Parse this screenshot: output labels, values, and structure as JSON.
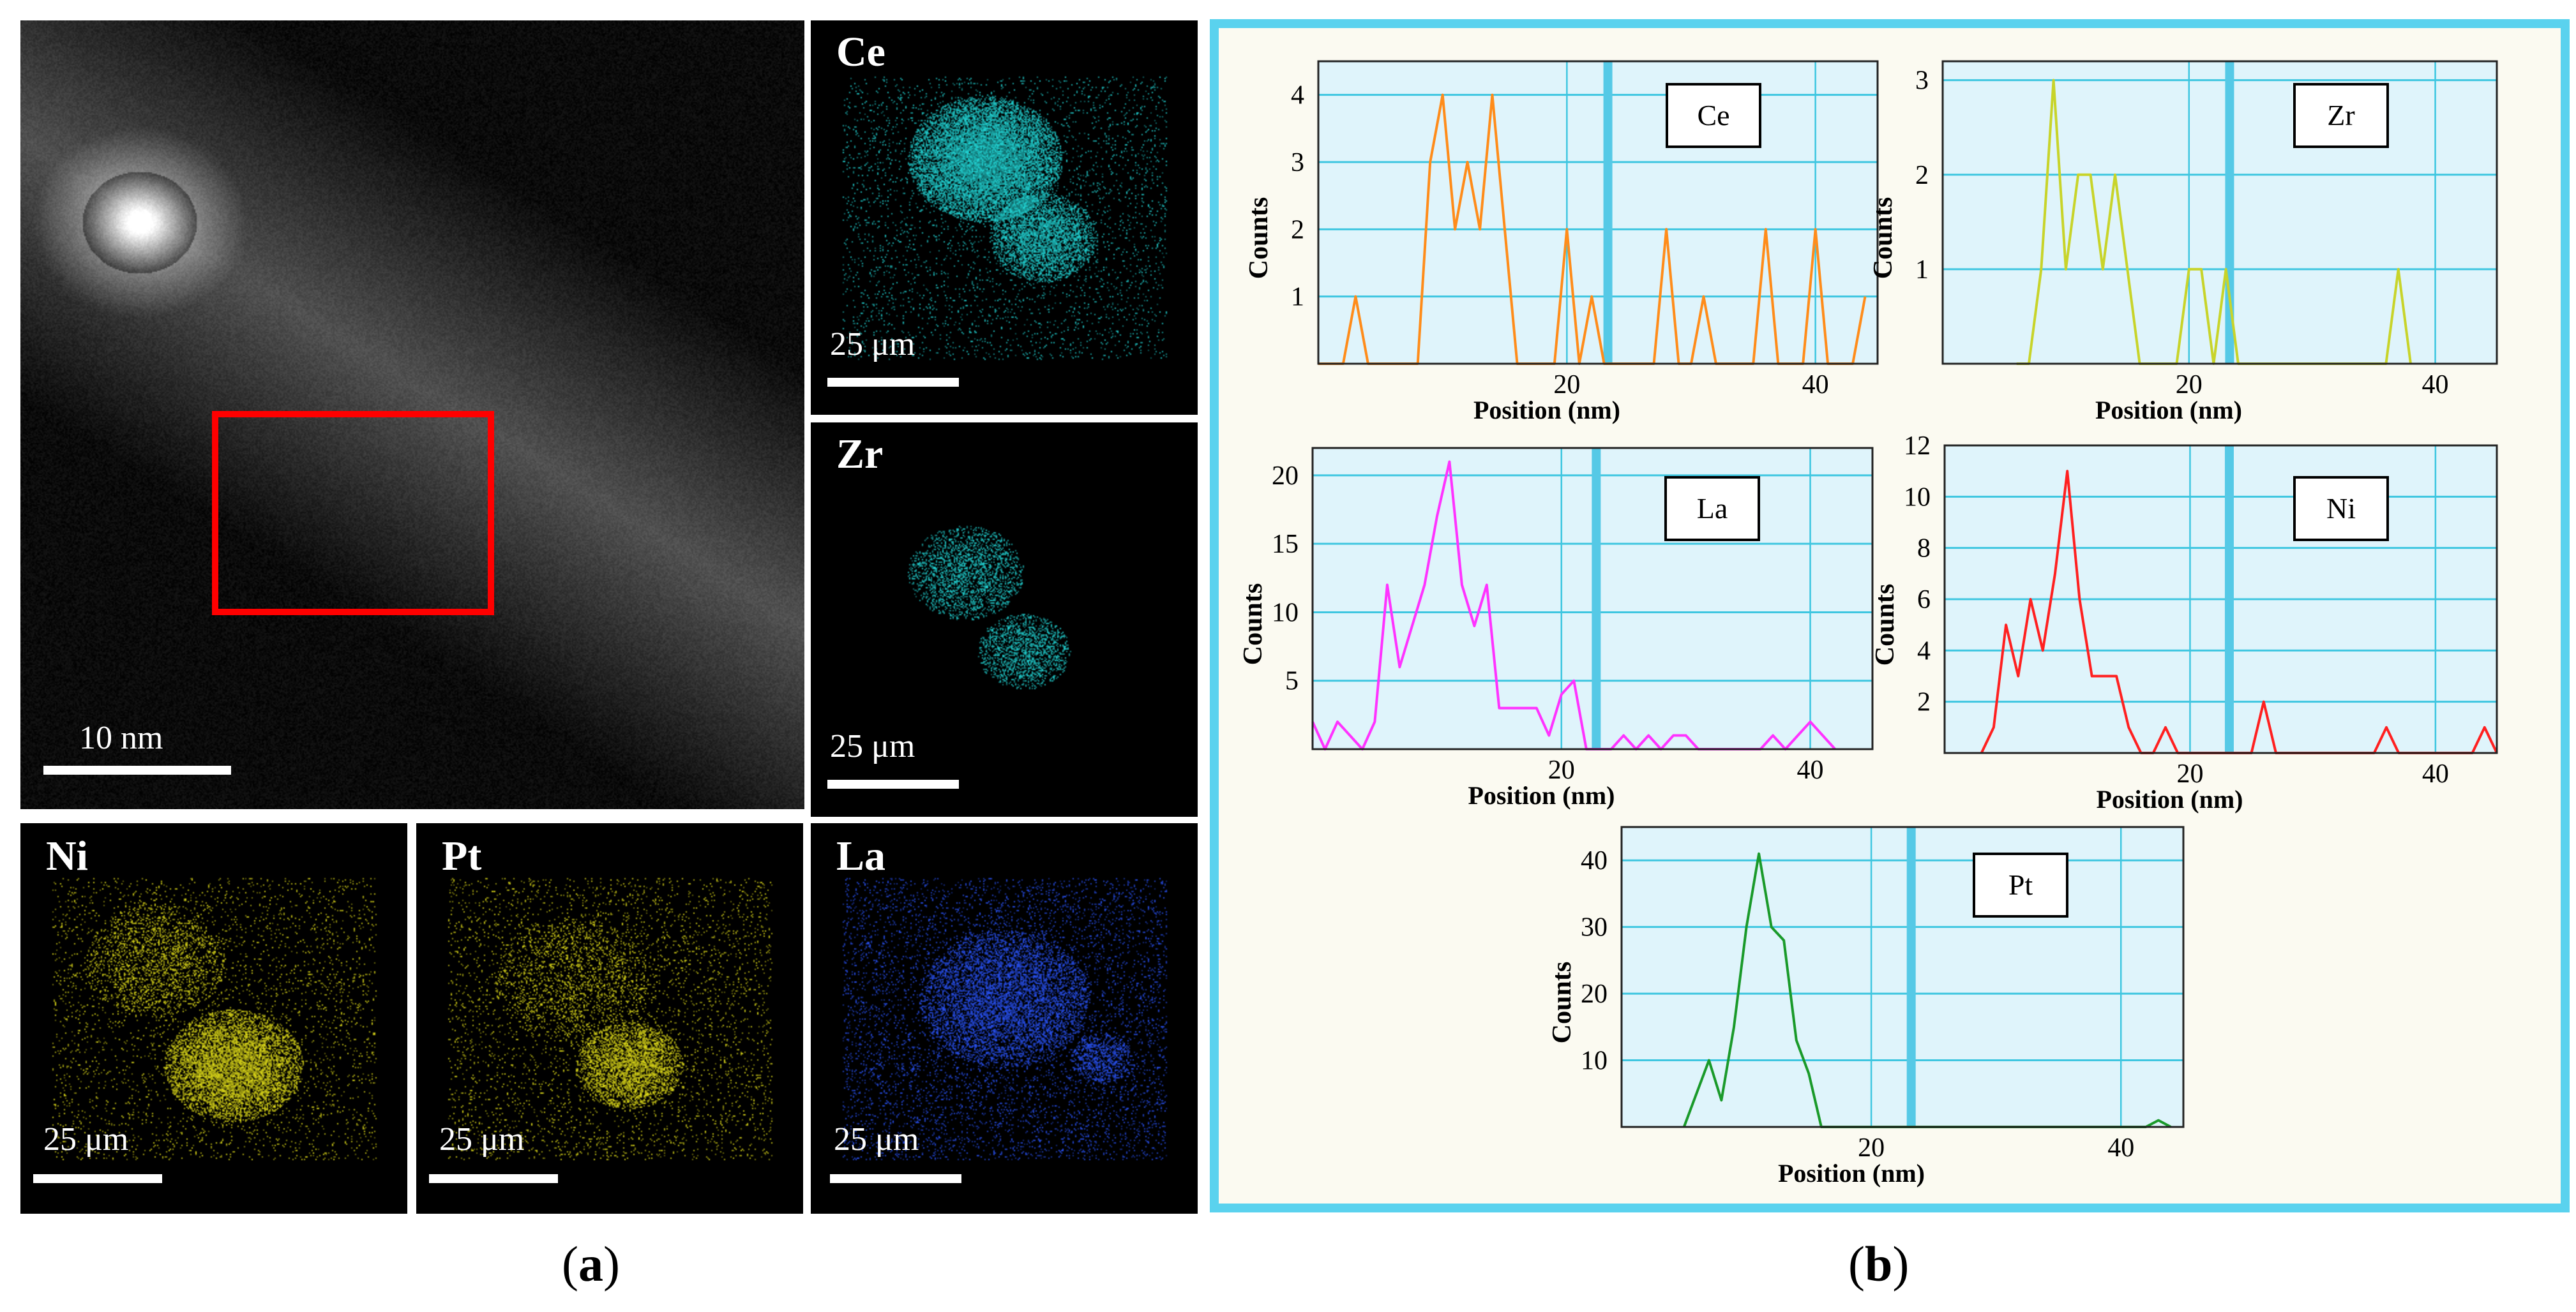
{
  "panel_a": {
    "haadf": {
      "scale_label": "10 nm"
    },
    "maps": [
      {
        "element": "Ce",
        "scale_label": "25 μm",
        "color": "#22d8d8"
      },
      {
        "element": "Zr",
        "scale_label": "25 μm",
        "color": "#22d8d8"
      },
      {
        "element": "Ni",
        "scale_label": "25 μm",
        "color": "#e6e21a"
      },
      {
        "element": "Pt",
        "scale_label": "25 μm",
        "color": "#e6e21a"
      },
      {
        "element": "La",
        "scale_label": "25 μm",
        "color": "#2a55ff"
      }
    ],
    "caption_open": "(",
    "caption_letter": "a",
    "caption_close": ")"
  },
  "panel_b": {
    "caption_open": "(",
    "caption_letter": "b",
    "caption_close": ")",
    "border_color": "#5ad2ee",
    "plot_background": "#dff4fb",
    "grid_color": "#3ec6e0"
  },
  "chart_data": [
    {
      "type": "line",
      "legend": "Ce",
      "color": "#ff8c1a",
      "xlabel": "Position (nm)",
      "ylabel": "Counts",
      "xlim": [
        0,
        45
      ],
      "ylim": [
        0,
        4.5
      ],
      "xticks": [
        20,
        40
      ],
      "yticks": [
        1,
        2,
        3,
        4
      ],
      "marker_x": 23.3,
      "x": [
        0,
        2,
        3,
        4,
        5,
        6,
        7,
        8,
        9,
        10,
        11,
        12,
        13,
        14,
        15,
        16,
        17,
        18,
        19,
        20,
        21,
        22,
        23,
        24,
        25,
        26,
        27,
        28,
        29,
        30,
        31,
        32,
        33,
        34,
        35,
        36,
        37,
        38,
        39,
        40,
        41,
        42,
        43,
        44
      ],
      "y": [
        0,
        0,
        1,
        0,
        0,
        0,
        0,
        0,
        3,
        4,
        2,
        3,
        2,
        4,
        2,
        0,
        0,
        0,
        0,
        2,
        0,
        1,
        0,
        0,
        0,
        0,
        0,
        2,
        0,
        0,
        1,
        0,
        0,
        0,
        0,
        2,
        0,
        0,
        0,
        2,
        0,
        0,
        0,
        1
      ]
    },
    {
      "type": "line",
      "legend": "Zr",
      "color": "#c8d42a",
      "xlabel": "Position (nm)",
      "ylabel": "Counts",
      "xlim": [
        0,
        45
      ],
      "ylim": [
        0,
        3.2
      ],
      "xticks": [
        20,
        40
      ],
      "yticks": [
        1,
        2,
        3
      ],
      "marker_x": 23.3,
      "x": [
        6,
        7,
        8,
        9,
        10,
        11,
        12,
        13,
        14,
        15,
        16,
        17,
        18,
        19,
        20,
        21,
        22,
        23,
        24,
        35,
        36,
        37,
        38
      ],
      "y": [
        0,
        0,
        1,
        3,
        1,
        2,
        2,
        1,
        2,
        1,
        0,
        0,
        0,
        0,
        1,
        1,
        0,
        1,
        0,
        0,
        0,
        1,
        0
      ]
    },
    {
      "type": "line",
      "legend": "La",
      "color": "#ff33ff",
      "xlabel": "Position (nm)",
      "ylabel": "Counts",
      "xlim": [
        0,
        45
      ],
      "ylim": [
        0,
        22
      ],
      "xticks": [
        20,
        40
      ],
      "yticks": [
        5,
        10,
        15,
        20
      ],
      "marker_x": 22.8,
      "x": [
        0,
        1,
        2,
        3,
        4,
        5,
        6,
        7,
        8,
        9,
        10,
        11,
        12,
        13,
        14,
        15,
        16,
        17,
        18,
        19,
        20,
        21,
        22,
        23,
        24,
        25,
        26,
        27,
        28,
        29,
        30,
        31,
        32,
        33,
        34,
        35,
        36,
        37,
        38,
        39,
        40,
        41,
        42
      ],
      "y": [
        2,
        0,
        2,
        1,
        0,
        2,
        12,
        6,
        9,
        12,
        17,
        21,
        12,
        9,
        12,
        3,
        3,
        3,
        3,
        1,
        4,
        5,
        0,
        0,
        0,
        1,
        0,
        1,
        0,
        1,
        1,
        0,
        0,
        0,
        0,
        0,
        0,
        1,
        0,
        1,
        2,
        1,
        0
      ]
    },
    {
      "type": "line",
      "legend": "Ni",
      "color": "#ff2020",
      "xlabel": "Position (nm)",
      "ylabel": "Counts",
      "xlim": [
        0,
        45
      ],
      "ylim": [
        0,
        12
      ],
      "xticks": [
        20,
        40
      ],
      "yticks": [
        2,
        4,
        6,
        8,
        10,
        12
      ],
      "marker_x": 23.2,
      "x": [
        3,
        4,
        5,
        6,
        7,
        8,
        9,
        10,
        11,
        12,
        13,
        14,
        15,
        16,
        17,
        18,
        19,
        20,
        21,
        22,
        23,
        24,
        25,
        26,
        27,
        28,
        29,
        30,
        31,
        32,
        33,
        34,
        35,
        36,
        37,
        38,
        39,
        40,
        41,
        42,
        43,
        44,
        45
      ],
      "y": [
        0,
        1,
        5,
        3,
        6,
        4,
        7,
        11,
        6,
        3,
        3,
        3,
        1,
        0,
        0,
        1,
        0,
        0,
        0,
        0,
        0,
        0,
        0,
        2,
        0,
        0,
        0,
        0,
        0,
        0,
        0,
        0,
        0,
        1,
        0,
        0,
        0,
        0,
        0,
        0,
        0,
        1,
        0
      ]
    },
    {
      "type": "line",
      "legend": "Pt",
      "color": "#1a9a2a",
      "xlabel": "Position (nm)",
      "ylabel": "Counts",
      "xlim": [
        0,
        45
      ],
      "ylim": [
        0,
        45
      ],
      "xticks": [
        20,
        40
      ],
      "yticks": [
        10,
        20,
        30,
        40
      ],
      "marker_x": 23.2,
      "x": [
        5,
        6,
        7,
        8,
        9,
        10,
        11,
        12,
        13,
        14,
        15,
        16,
        42,
        43,
        44
      ],
      "y": [
        0,
        5,
        10,
        4,
        15,
        30,
        41,
        30,
        28,
        13,
        8,
        0,
        0,
        1,
        0
      ]
    }
  ]
}
